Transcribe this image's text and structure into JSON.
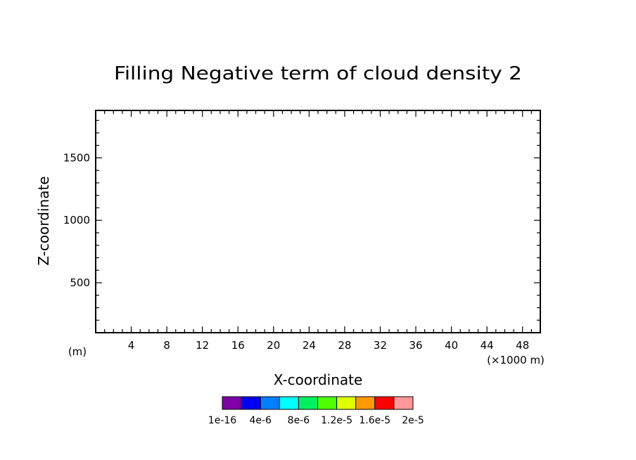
{
  "chart_data": {
    "type": "heatmap",
    "title": "Filling Negative term of cloud density 2",
    "xlabel": "X-coordinate",
    "ylabel": "Z-coordinate",
    "x_unit": "(×1000 m)",
    "y_unit": "(m)",
    "xlim": [
      0,
      50
    ],
    "ylim": [
      100,
      1880
    ],
    "x_ticks": [
      4,
      8,
      12,
      16,
      20,
      24,
      28,
      32,
      36,
      40,
      44,
      48
    ],
    "y_ticks": [
      500,
      1000,
      1500
    ],
    "x_tick_labels": [
      "4",
      "8",
      "12",
      "16",
      "20",
      "24",
      "28",
      "32",
      "36",
      "40",
      "44",
      "48"
    ],
    "y_tick_labels": [
      "500",
      "1000",
      "1500"
    ],
    "values": [],
    "colorbar": {
      "colors": [
        "#7f00a8",
        "#0000f0",
        "#0080ff",
        "#00ffff",
        "#00f060",
        "#50ff00",
        "#e0ff00",
        "#ff9900",
        "#ff0000",
        "#ff9999"
      ],
      "labels": [
        "1e-16",
        "4e-6",
        "8e-6",
        "1.2e-5",
        "1.6e-5",
        "2e-5"
      ]
    }
  }
}
